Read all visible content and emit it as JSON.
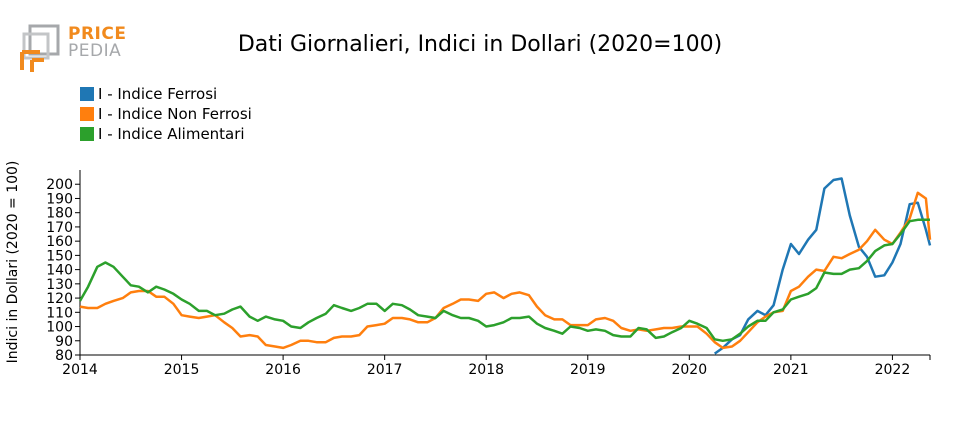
{
  "logo": {
    "top_text": "PRICE",
    "bottom_text": "PEDIA",
    "color_orange": "#f18a1d",
    "color_gray": "#a6a8ab"
  },
  "chart_data": {
    "type": "line",
    "title": "Dati Giornalieri, Indici in Dollari (2020=100)",
    "ylabel": "Indici in Dollari (2020 = 100)",
    "xlabel": "",
    "xlim": [
      2014.0,
      2022.37
    ],
    "ylim": [
      80,
      210
    ],
    "yticks": [
      80,
      90,
      100,
      110,
      120,
      130,
      140,
      150,
      160,
      170,
      180,
      190,
      200
    ],
    "xticks": [
      2014,
      2015,
      2016,
      2017,
      2018,
      2019,
      2020,
      2021,
      2022
    ],
    "xtick_labels": [
      "2014",
      "2015",
      "2016",
      "2017",
      "2018",
      "2019",
      "2020",
      "2021",
      "2022"
    ],
    "grid": false,
    "legend_position": "top-left",
    "series": [
      {
        "name": "I - Indice Ferrosi",
        "color": "#1f77b4",
        "x": [
          2020.25,
          2020.33,
          2020.42,
          2020.5,
          2020.58,
          2020.67,
          2020.75,
          2020.83,
          2020.92,
          2021.0,
          2021.08,
          2021.17,
          2021.25,
          2021.33,
          2021.42,
          2021.5,
          2021.58,
          2021.67,
          2021.75,
          2021.83,
          2021.92,
          2022.0,
          2022.08,
          2022.17,
          2022.25,
          2022.33,
          2022.37
        ],
        "y": [
          81,
          85,
          91,
          94,
          105,
          111,
          108,
          115,
          140,
          158,
          151,
          161,
          168,
          197,
          203,
          204,
          178,
          156,
          149,
          135,
          136,
          145,
          158,
          186,
          187,
          168,
          157
        ]
      },
      {
        "name": "I - Indice Non Ferrosi",
        "color": "#ff7f0e",
        "x": [
          2014.0,
          2014.08,
          2014.17,
          2014.25,
          2014.33,
          2014.42,
          2014.5,
          2014.58,
          2014.67,
          2014.75,
          2014.83,
          2014.92,
          2015.0,
          2015.08,
          2015.17,
          2015.25,
          2015.33,
          2015.42,
          2015.5,
          2015.58,
          2015.67,
          2015.75,
          2015.83,
          2015.92,
          2016.0,
          2016.08,
          2016.17,
          2016.25,
          2016.33,
          2016.42,
          2016.5,
          2016.58,
          2016.67,
          2016.75,
          2016.83,
          2016.92,
          2017.0,
          2017.08,
          2017.17,
          2017.25,
          2017.33,
          2017.42,
          2017.5,
          2017.58,
          2017.67,
          2017.75,
          2017.83,
          2017.92,
          2018.0,
          2018.08,
          2018.17,
          2018.25,
          2018.33,
          2018.42,
          2018.5,
          2018.58,
          2018.67,
          2018.75,
          2018.83,
          2018.92,
          2019.0,
          2019.08,
          2019.17,
          2019.25,
          2019.33,
          2019.42,
          2019.5,
          2019.58,
          2019.67,
          2019.75,
          2019.83,
          2019.92,
          2020.0,
          2020.08,
          2020.17,
          2020.25,
          2020.33,
          2020.42,
          2020.5,
          2020.58,
          2020.67,
          2020.75,
          2020.83,
          2020.92,
          2021.0,
          2021.08,
          2021.17,
          2021.25,
          2021.33,
          2021.42,
          2021.5,
          2021.58,
          2021.67,
          2021.75,
          2021.83,
          2021.92,
          2022.0,
          2022.08,
          2022.17,
          2022.25,
          2022.33,
          2022.37
        ],
        "y": [
          114,
          113,
          113,
          116,
          118,
          120,
          124,
          125,
          125,
          121,
          121,
          116,
          108,
          107,
          106,
          107,
          108,
          103,
          99,
          93,
          94,
          93,
          87,
          86,
          85,
          87,
          90,
          90,
          89,
          89,
          92,
          93,
          93,
          94,
          100,
          101,
          102,
          106,
          106,
          105,
          103,
          103,
          106,
          113,
          116,
          119,
          119,
          118,
          123,
          124,
          120,
          123,
          124,
          122,
          114,
          108,
          105,
          105,
          101,
          101,
          101,
          105,
          106,
          104,
          99,
          97,
          98,
          97,
          98,
          99,
          99,
          100,
          100,
          100,
          95,
          89,
          85,
          86,
          90,
          96,
          103,
          107,
          110,
          111,
          125,
          128,
          135,
          140,
          139,
          149,
          148,
          151,
          154,
          160,
          168,
          161,
          158,
          166,
          176,
          194,
          190,
          161
        ]
      },
      {
        "name": "I - Indice Alimentari",
        "color": "#2ca02c",
        "x": [
          2014.0,
          2014.08,
          2014.17,
          2014.25,
          2014.33,
          2014.42,
          2014.5,
          2014.58,
          2014.67,
          2014.75,
          2014.83,
          2014.92,
          2015.0,
          2015.08,
          2015.17,
          2015.25,
          2015.33,
          2015.42,
          2015.5,
          2015.58,
          2015.67,
          2015.75,
          2015.83,
          2015.92,
          2016.0,
          2016.08,
          2016.17,
          2016.25,
          2016.33,
          2016.42,
          2016.5,
          2016.58,
          2016.67,
          2016.75,
          2016.83,
          2016.92,
          2017.0,
          2017.08,
          2017.17,
          2017.25,
          2017.33,
          2017.42,
          2017.5,
          2017.58,
          2017.67,
          2017.75,
          2017.83,
          2017.92,
          2018.0,
          2018.08,
          2018.17,
          2018.25,
          2018.33,
          2018.42,
          2018.5,
          2018.58,
          2018.67,
          2018.75,
          2018.83,
          2018.92,
          2019.0,
          2019.08,
          2019.17,
          2019.25,
          2019.33,
          2019.42,
          2019.5,
          2019.58,
          2019.67,
          2019.75,
          2019.83,
          2019.92,
          2020.0,
          2020.08,
          2020.17,
          2020.25,
          2020.33,
          2020.42,
          2020.5,
          2020.58,
          2020.67,
          2020.75,
          2020.83,
          2020.92,
          2021.0,
          2021.08,
          2021.17,
          2021.25,
          2021.33,
          2021.42,
          2021.5,
          2021.58,
          2021.67,
          2021.75,
          2021.83,
          2021.92,
          2022.0,
          2022.08,
          2022.17,
          2022.25,
          2022.33,
          2022.37
        ],
        "y": [
          118,
          128,
          142,
          145,
          142,
          135,
          129,
          128,
          124,
          128,
          126,
          123,
          119,
          116,
          111,
          111,
          108,
          109,
          112,
          114,
          107,
          104,
          107,
          105,
          104,
          100,
          99,
          103,
          106,
          109,
          115,
          113,
          111,
          113,
          116,
          116,
          111,
          116,
          115,
          112,
          108,
          107,
          106,
          111,
          108,
          106,
          106,
          104,
          100,
          101,
          103,
          106,
          106,
          107,
          102,
          99,
          97,
          95,
          100,
          99,
          97,
          98,
          97,
          94,
          93,
          93,
          99,
          98,
          92,
          93,
          96,
          99,
          104,
          102,
          99,
          91,
          90,
          91,
          95,
          100,
          104,
          104,
          110,
          112,
          119,
          121,
          123,
          127,
          138,
          137,
          137,
          140,
          141,
          146,
          153,
          157,
          158,
          165,
          174,
          175,
          175,
          175
        ]
      }
    ]
  }
}
